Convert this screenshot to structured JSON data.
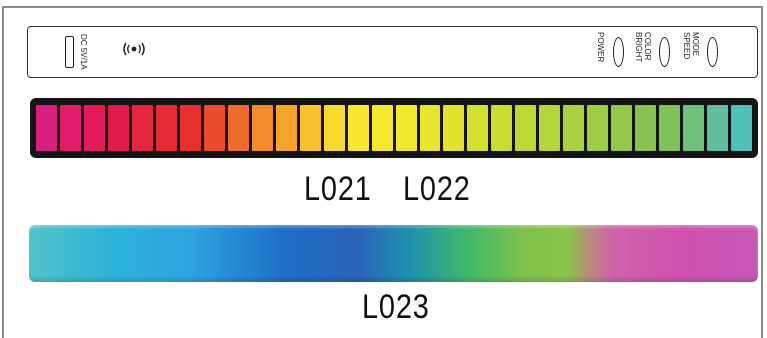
{
  "device_panel": {
    "port_label": "DC 5V/1A",
    "buttons": [
      {
        "label": "POWER"
      },
      {
        "label": "COLOR\nBRIGHT"
      },
      {
        "label": "MODE\nSPEED"
      }
    ],
    "icons": [
      "power-port-icon",
      "sound-sensor-icon"
    ]
  },
  "segmented_bar": {
    "segment_colors": [
      "#d81f7d",
      "#e11d6b",
      "#e31b5b",
      "#e21b4d",
      "#e52640",
      "#e62b34",
      "#e7312d",
      "#ec4a2a",
      "#f06b2b",
      "#f38a2b",
      "#f6a42d",
      "#f8c22e",
      "#f9d92f",
      "#f8e52f",
      "#f5e82f",
      "#f0e72e",
      "#e9e52f",
      "#e1e22f",
      "#d6df30",
      "#c9dc34",
      "#bdd937",
      "#b3d63c",
      "#a7d140",
      "#9dcd45",
      "#93c84a",
      "#8ac34f",
      "#7fc15b",
      "#6ebf7a",
      "#5fbea0",
      "#52bfb8"
    ]
  },
  "labels": {
    "l021": "L021",
    "l022": "L022",
    "l023": "L023"
  }
}
